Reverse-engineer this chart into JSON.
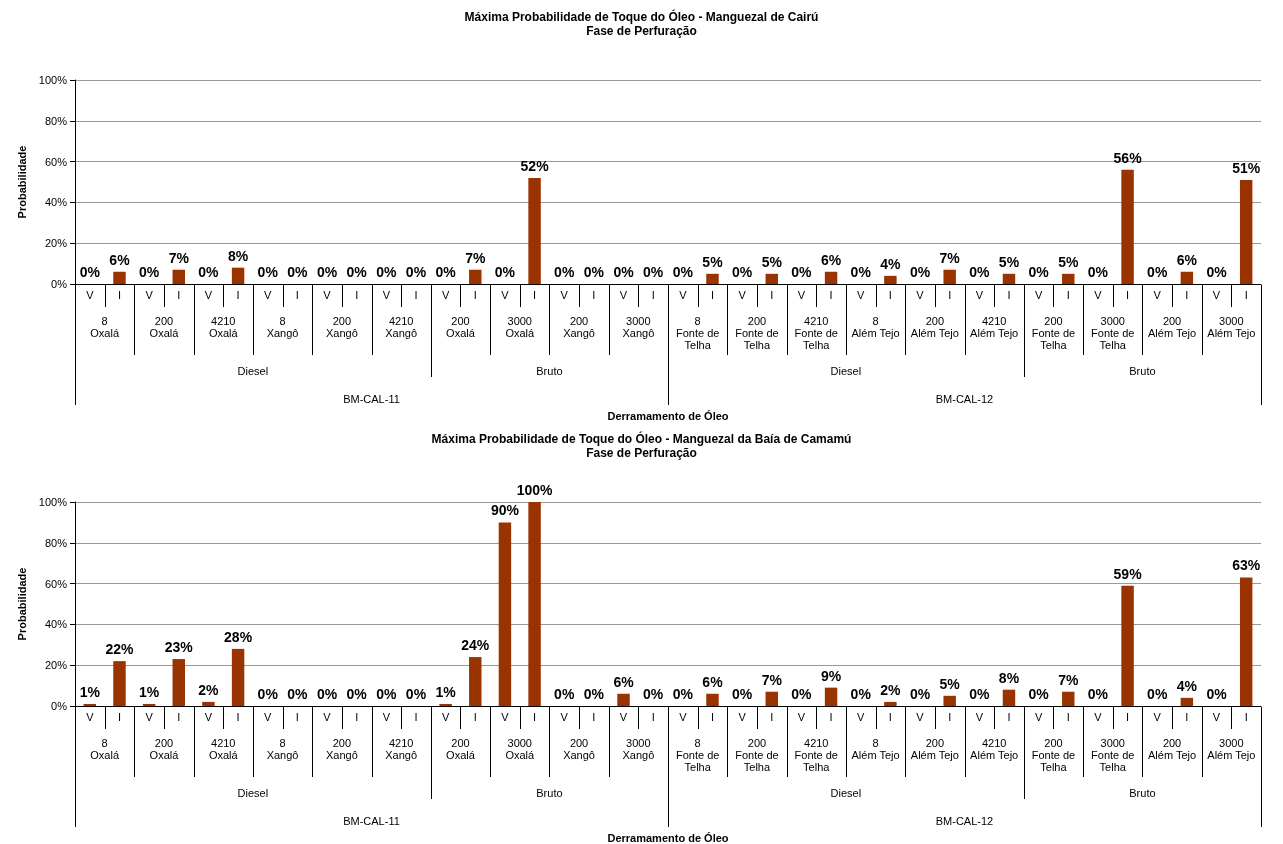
{
  "chart_data": [
    {
      "type": "bar",
      "title": "Máxima Probabilidade de Toque do Óleo - Manguezal de Cairú",
      "subtitle": "Fase de Perfuração",
      "xlabel": "Derramamento de Óleo",
      "ylabel": "Probabilidade",
      "categories": [
        "V",
        "I",
        "V",
        "I",
        "V",
        "I",
        "V",
        "I",
        "V",
        "I",
        "V",
        "I",
        "V",
        "I",
        "V",
        "I",
        "V",
        "I",
        "V",
        "I",
        "V",
        "I",
        "V",
        "I",
        "V",
        "I",
        "V",
        "I",
        "V",
        "I",
        "V",
        "I",
        "V",
        "I",
        "V",
        "I",
        "V",
        "I",
        "V",
        "I"
      ],
      "values": [
        0,
        6,
        0,
        7,
        0,
        8,
        0,
        0,
        0,
        0,
        0,
        0,
        0,
        7,
        0,
        52,
        0,
        0,
        0,
        0,
        0,
        5,
        0,
        5,
        0,
        6,
        0,
        4,
        0,
        7,
        0,
        5,
        0,
        5,
        0,
        56,
        0,
        6,
        0,
        51
      ],
      "value_labels": [
        "0%",
        "6%",
        "0%",
        "7%",
        "0%",
        "8%",
        "0%",
        "0%",
        "0%",
        "0%",
        "0%",
        "0%",
        "0%",
        "7%",
        "0%",
        "52%",
        "0%",
        "0%",
        "0%",
        "0%",
        "0%",
        "5%",
        "0%",
        "5%",
        "0%",
        "6%",
        "0%",
        "4%",
        "0%",
        "7%",
        "0%",
        "5%",
        "0%",
        "5%",
        "0%",
        "56%",
        "0%",
        "6%",
        "0%",
        "51%"
      ],
      "color": "#993300",
      "ylim": [
        0,
        100
      ],
      "yticks": [
        {
          "value": 0,
          "label": "0%"
        },
        {
          "value": 20,
          "label": "20%"
        },
        {
          "value": 40,
          "label": "40%"
        },
        {
          "value": 60,
          "label": "60%"
        },
        {
          "value": 80,
          "label": "80%"
        },
        {
          "value": 100,
          "label": "100%"
        }
      ],
      "grid": "y",
      "annotations": [
        "8\nOxalá",
        "200\nOxalá",
        "4210\nOxalá",
        "8\nXangô",
        "200\nXangô",
        "4210\nXangô",
        "200\nOxalá",
        "3000\nOxalá",
        "200\nXangô",
        "3000\nXangô",
        "8\nFonte de\nTelha",
        "200\nFonte de\nTelha",
        "4210\nFonte de\nTelha",
        "8\nAlém Tejo",
        "200\nAlém Tejo",
        "4210\nAlém Tejo",
        "200\nFonte de\nTelha",
        "3000\nFonte de\nTelha",
        "200\nAlém Tejo",
        "3000\nAlém Tejo",
        "Diesel",
        "Bruto",
        "Diesel",
        "Bruto",
        "BM-CAL-11",
        "BM-CAL-12"
      ]
    },
    {
      "type": "bar",
      "title": "Máxima Probabilidade de Toque do Óleo - Manguezal da Baía de Camamú",
      "subtitle": "Fase de Perfuração",
      "xlabel": "Derramamento de Óleo",
      "ylabel": "Probabilidade",
      "categories": [
        "V",
        "I",
        "V",
        "I",
        "V",
        "I",
        "V",
        "I",
        "V",
        "I",
        "V",
        "I",
        "V",
        "I",
        "V",
        "I",
        "V",
        "I",
        "V",
        "I",
        "V",
        "I",
        "V",
        "I",
        "V",
        "I",
        "V",
        "I",
        "V",
        "I",
        "V",
        "I",
        "V",
        "I",
        "V",
        "I",
        "V",
        "I",
        "V",
        "I"
      ],
      "values": [
        1,
        22,
        1,
        23,
        2,
        28,
        0,
        0,
        0,
        0,
        0,
        0,
        1,
        24,
        90,
        100,
        0,
        0,
        6,
        0,
        0,
        6,
        0,
        7,
        0,
        9,
        0,
        2,
        0,
        5,
        0,
        8,
        0,
        7,
        0,
        59,
        0,
        4,
        0,
        63
      ],
      "value_labels": [
        "1%",
        "22%",
        "1%",
        "23%",
        "2%",
        "28%",
        "0%",
        "0%",
        "0%",
        "0%",
        "0%",
        "0%",
        "1%",
        "24%",
        "90%",
        "100%",
        "0%",
        "0%",
        "6%",
        "0%",
        "0%",
        "6%",
        "0%",
        "7%",
        "0%",
        "9%",
        "0%",
        "2%",
        "0%",
        "5%",
        "0%",
        "8%",
        "0%",
        "7%",
        "0%",
        "59%",
        "0%",
        "4%",
        "0%",
        "63%"
      ],
      "color": "#993300",
      "ylim": [
        0,
        100
      ],
      "yticks": [
        {
          "value": 0,
          "label": "0%"
        },
        {
          "value": 20,
          "label": "20%"
        },
        {
          "value": 40,
          "label": "40%"
        },
        {
          "value": 60,
          "label": "60%"
        },
        {
          "value": 80,
          "label": "80%"
        },
        {
          "value": 100,
          "label": "100%"
        }
      ],
      "grid": "y",
      "annotations": [
        "8\nOxalá",
        "200\nOxalá",
        "4210\nOxalá",
        "8\nXangô",
        "200\nXangô",
        "4210\nXangô",
        "200\nOxalá",
        "3000\nOxalá",
        "200\nXangô",
        "3000\nXangô",
        "8\nFonte de\nTelha",
        "200\nFonte de\nTelha",
        "4210\nFonte de\nTelha",
        "8\nAlém Tejo",
        "200\nAlém Tejo",
        "4210\nAlém Tejo",
        "200\nFonte de\nTelha",
        "3000\nFonte de\nTelha",
        "200\nAlém Tejo",
        "3000\nAlém Tejo",
        "Diesel",
        "Bruto",
        "Diesel",
        "Bruto",
        "BM-CAL-11",
        "BM-CAL-12"
      ]
    }
  ]
}
